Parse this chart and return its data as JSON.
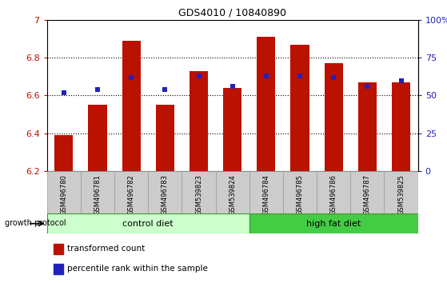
{
  "title": "GDS4010 / 10840890",
  "samples": [
    "GSM496780",
    "GSM496781",
    "GSM496782",
    "GSM496783",
    "GSM539823",
    "GSM539824",
    "GSM496784",
    "GSM496785",
    "GSM496786",
    "GSM496787",
    "GSM539825"
  ],
  "red_values": [
    6.39,
    6.55,
    6.89,
    6.55,
    6.73,
    6.64,
    6.91,
    6.87,
    6.77,
    6.67,
    6.67
  ],
  "blue_values_pct": [
    52,
    54,
    62,
    54,
    63,
    56,
    63,
    63,
    62,
    56,
    60
  ],
  "ylim_left": [
    6.2,
    7.0
  ],
  "ylim_right": [
    0,
    100
  ],
  "yticks_left": [
    6.2,
    6.4,
    6.6,
    6.8,
    7.0
  ],
  "yticks_right": [
    0,
    25,
    50,
    75,
    100
  ],
  "ytick_labels_left": [
    "6.2",
    "6.4",
    "6.6",
    "6.8",
    "7"
  ],
  "ytick_labels_right": [
    "0",
    "25",
    "50",
    "75",
    "100%"
  ],
  "control_diet_indices": [
    0,
    1,
    2,
    3,
    4,
    5
  ],
  "high_fat_indices": [
    6,
    7,
    8,
    9,
    10
  ],
  "control_label": "control diet",
  "high_fat_label": "high fat diet",
  "growth_protocol_label": "growth protocol",
  "legend_red": "transformed count",
  "legend_blue": "percentile rank within the sample",
  "bar_color": "#BB1100",
  "blue_color": "#2222BB",
  "control_bg": "#CCFFCC",
  "high_fat_bg": "#44CC44",
  "tick_bg": "#CCCCCC",
  "base_value": 6.2,
  "bar_width": 0.55
}
